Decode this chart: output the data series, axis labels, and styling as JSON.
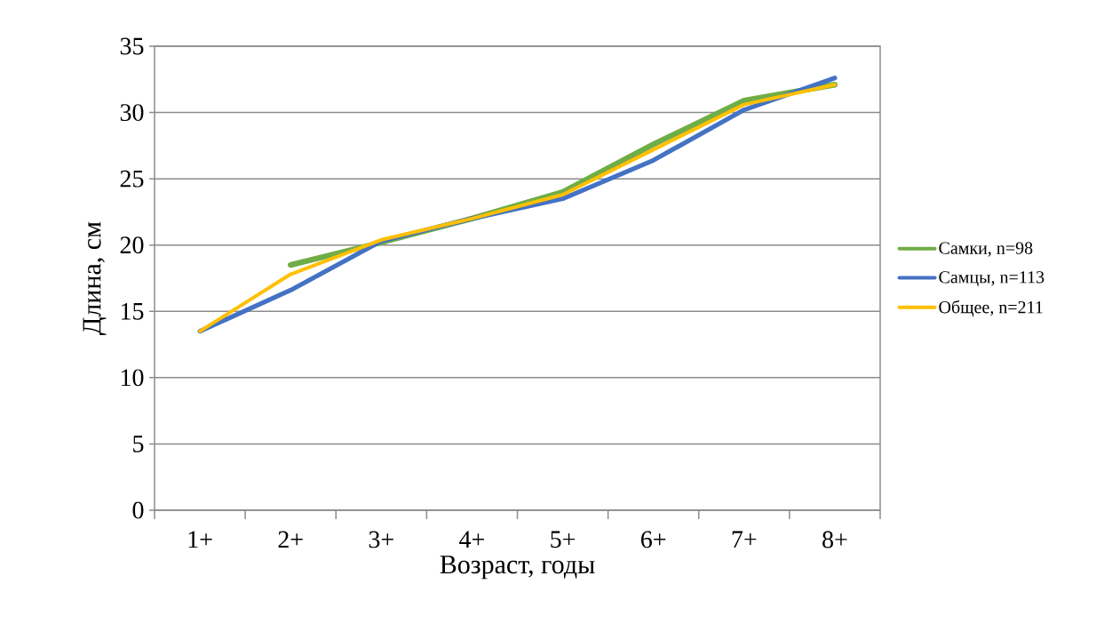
{
  "chart_data": {
    "type": "line",
    "xlabel": "Возраст, годы",
    "ylabel": "Длина, см",
    "categories": [
      "1+",
      "2+",
      "3+",
      "4+",
      "5+",
      "6+",
      "7+",
      "8+"
    ],
    "series": [
      {
        "name": "Самки, n=98",
        "color": "#70ad47",
        "values": [
          null,
          18.5,
          20.2,
          22.0,
          24.0,
          27.6,
          30.9,
          32.1
        ]
      },
      {
        "name": "Самцы, n=113",
        "color": "#4472c4",
        "values": [
          13.5,
          16.6,
          20.3,
          22.0,
          23.5,
          26.4,
          30.2,
          32.6
        ]
      },
      {
        "name": "Общее, n=211",
        "color": "#ffc000",
        "values": [
          13.5,
          17.8,
          20.4,
          22.0,
          23.8,
          27.2,
          30.6,
          32.1
        ]
      }
    ],
    "ylim": [
      0,
      35
    ],
    "yticks": [
      0,
      5,
      10,
      15,
      20,
      25,
      30,
      35
    ],
    "grid": "y",
    "legend": "right"
  }
}
